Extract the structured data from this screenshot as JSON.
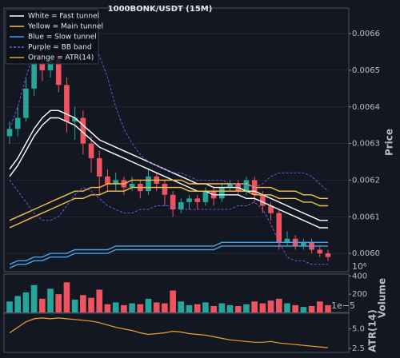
{
  "chart_data": [
    {
      "type": "candlestick",
      "title": "1000BONK/USDT (15M)",
      "ylabel": "Price",
      "up_color": "#26a69a",
      "down_color": "#ef5360",
      "grid": true,
      "legend": "upper left",
      "ylim": [
        0.00595,
        0.00667
      ],
      "yticks": [
        {
          "value": 0.006,
          "label": "0.0060"
        },
        0.0061,
        0.0062,
        0.0063,
        0.0064,
        0.0065,
        0.0066
      ],
      "open": [
        0.00632,
        0.00634,
        0.00637,
        0.00645,
        0.00652,
        0.0065,
        0.00653,
        0.00646,
        0.00636,
        0.00637,
        0.0063,
        0.00626,
        0.00621,
        0.00619,
        0.0062,
        0.00618,
        0.00619,
        0.00617,
        0.00621,
        0.00619,
        0.00616,
        0.00612,
        0.00614,
        0.00615,
        0.00614,
        0.00617,
        0.00615,
        0.00618,
        0.00619,
        0.00617,
        0.0062,
        0.00616,
        0.00613,
        0.00611,
        0.00603,
        0.00604,
        0.00602,
        0.00603,
        0.00601,
        0.006
      ],
      "high": [
        0.00636,
        0.0064,
        0.00648,
        0.0066,
        0.00655,
        0.00658,
        0.00655,
        0.00648,
        0.0064,
        0.00639,
        0.00632,
        0.00628,
        0.00623,
        0.00622,
        0.00621,
        0.00621,
        0.0062,
        0.00623,
        0.00622,
        0.0062,
        0.00617,
        0.00615,
        0.00616,
        0.00616,
        0.00618,
        0.00618,
        0.00619,
        0.0062,
        0.0062,
        0.00621,
        0.00621,
        0.00617,
        0.00614,
        0.00612,
        0.00606,
        0.00605,
        0.00604,
        0.00604,
        0.00602,
        0.00601
      ],
      "low": [
        0.0063,
        0.00632,
        0.00636,
        0.00643,
        0.00647,
        0.00648,
        0.00644,
        0.00633,
        0.00631,
        0.00627,
        0.00622,
        0.00616,
        0.00617,
        0.00617,
        0.00616,
        0.00617,
        0.00615,
        0.00616,
        0.00617,
        0.00613,
        0.0061,
        0.00611,
        0.00612,
        0.00612,
        0.00613,
        0.00613,
        0.00614,
        0.00617,
        0.00616,
        0.00616,
        0.00614,
        0.00611,
        0.00609,
        0.00601,
        0.00602,
        0.00601,
        0.00601,
        0.006,
        0.00599,
        0.00598
      ],
      "close": [
        0.00634,
        0.00637,
        0.00645,
        0.00652,
        0.0065,
        0.00653,
        0.00646,
        0.00636,
        0.00637,
        0.0063,
        0.00626,
        0.00621,
        0.00619,
        0.0062,
        0.00618,
        0.00619,
        0.00617,
        0.00621,
        0.00619,
        0.00616,
        0.00612,
        0.00614,
        0.00615,
        0.00614,
        0.00617,
        0.00615,
        0.00618,
        0.00619,
        0.00617,
        0.0062,
        0.00616,
        0.00613,
        0.00611,
        0.00603,
        0.00604,
        0.00602,
        0.00603,
        0.00601,
        0.006,
        0.00599
      ],
      "series": [
        {
          "name": "White = Fast tunnel",
          "color": "#ffffff",
          "dash": false,
          "upper": [
            0.00623,
            0.00626,
            0.0063,
            0.00634,
            0.00637,
            0.00639,
            0.00639,
            0.00638,
            0.00637,
            0.00635,
            0.00633,
            0.00631,
            0.0063,
            0.00629,
            0.00628,
            0.00627,
            0.00626,
            0.00625,
            0.00624,
            0.00623,
            0.00622,
            0.00621,
            0.0062,
            0.00619,
            0.00619,
            0.00618,
            0.00618,
            0.00618,
            0.00618,
            0.00617,
            0.00617,
            0.00616,
            0.00615,
            0.00614,
            0.00613,
            0.00612,
            0.00611,
            0.0061,
            0.00609,
            0.00609
          ],
          "lower": [
            0.00621,
            0.00624,
            0.00628,
            0.00632,
            0.00635,
            0.00637,
            0.00637,
            0.00636,
            0.00635,
            0.00633,
            0.00631,
            0.00629,
            0.00628,
            0.00627,
            0.00626,
            0.00625,
            0.00624,
            0.00623,
            0.00622,
            0.00621,
            0.0062,
            0.00619,
            0.00618,
            0.00617,
            0.00617,
            0.00616,
            0.00616,
            0.00616,
            0.00616,
            0.00615,
            0.00615,
            0.00614,
            0.00613,
            0.00612,
            0.00611,
            0.0061,
            0.00609,
            0.00608,
            0.00607,
            0.00607
          ]
        },
        {
          "name": "Yellow = Main tunnel",
          "color": "#f5c342",
          "dash": false,
          "upper": [
            0.00609,
            0.0061,
            0.00611,
            0.00612,
            0.00613,
            0.00614,
            0.00615,
            0.00616,
            0.00617,
            0.00617,
            0.00618,
            0.00618,
            0.00619,
            0.00619,
            0.00619,
            0.0062,
            0.0062,
            0.0062,
            0.0062,
            0.0062,
            0.0062,
            0.0062,
            0.00619,
            0.00619,
            0.00619,
            0.00619,
            0.00619,
            0.00619,
            0.00619,
            0.00619,
            0.00618,
            0.00618,
            0.00618,
            0.00617,
            0.00617,
            0.00617,
            0.00616,
            0.00616,
            0.00615,
            0.00615
          ],
          "lower": [
            0.00607,
            0.00608,
            0.00609,
            0.0061,
            0.00611,
            0.00612,
            0.00613,
            0.00614,
            0.00615,
            0.00615,
            0.00616,
            0.00616,
            0.00617,
            0.00617,
            0.00617,
            0.00618,
            0.00618,
            0.00618,
            0.00618,
            0.00618,
            0.00618,
            0.00618,
            0.00617,
            0.00617,
            0.00617,
            0.00617,
            0.00617,
            0.00617,
            0.00617,
            0.00617,
            0.00616,
            0.00616,
            0.00616,
            0.00615,
            0.00615,
            0.00615,
            0.00614,
            0.00614,
            0.00613,
            0.00613
          ]
        },
        {
          "name": "Blue = Slow tunnel",
          "color": "#4aa3e8",
          "dash": false,
          "upper": [
            0.00597,
            0.00598,
            0.00598,
            0.00599,
            0.00599,
            0.006,
            0.006,
            0.006,
            0.00601,
            0.00601,
            0.00601,
            0.00601,
            0.00601,
            0.00602,
            0.00602,
            0.00602,
            0.00602,
            0.00602,
            0.00602,
            0.00602,
            0.00602,
            0.00602,
            0.00602,
            0.00602,
            0.00602,
            0.00602,
            0.00603,
            0.00603,
            0.00603,
            0.00603,
            0.00603,
            0.00603,
            0.00603,
            0.00603,
            0.00603,
            0.00603,
            0.00603,
            0.00603,
            0.00603,
            0.00603
          ],
          "lower": [
            0.00596,
            0.00597,
            0.00597,
            0.00598,
            0.00598,
            0.00599,
            0.00599,
            0.00599,
            0.006,
            0.006,
            0.006,
            0.006,
            0.006,
            0.00601,
            0.00601,
            0.00601,
            0.00601,
            0.00601,
            0.00601,
            0.00601,
            0.00601,
            0.00601,
            0.00601,
            0.00601,
            0.00601,
            0.00601,
            0.00602,
            0.00602,
            0.00602,
            0.00602,
            0.00602,
            0.00602,
            0.00602,
            0.00602,
            0.00602,
            0.00602,
            0.00602,
            0.00602,
            0.00602,
            0.00602
          ]
        },
        {
          "name": "Purple = BB band",
          "color": "#7b5ce6",
          "dash": true,
          "upper": [
            0.00634,
            0.0064,
            0.00648,
            0.00655,
            0.0066,
            0.00663,
            0.00664,
            0.00664,
            0.00663,
            0.0066,
            0.00657,
            0.00654,
            0.00648,
            0.0064,
            0.00634,
            0.0063,
            0.00627,
            0.00625,
            0.00624,
            0.00623,
            0.00622,
            0.00622,
            0.00621,
            0.0062,
            0.0062,
            0.0062,
            0.0062,
            0.00619,
            0.00619,
            0.00619,
            0.00618,
            0.00619,
            0.00621,
            0.00622,
            0.00622,
            0.00622,
            0.00622,
            0.00621,
            0.00619,
            0.00617
          ],
          "lower": [
            0.0062,
            0.00617,
            0.00614,
            0.00611,
            0.00609,
            0.00609,
            0.0061,
            0.00613,
            0.00616,
            0.00618,
            0.00617,
            0.00615,
            0.00613,
            0.00612,
            0.00611,
            0.00611,
            0.00612,
            0.00612,
            0.00613,
            0.00613,
            0.00613,
            0.00612,
            0.00612,
            0.00612,
            0.00612,
            0.00612,
            0.00612,
            0.00612,
            0.00613,
            0.00613,
            0.00614,
            0.00612,
            0.00608,
            0.00603,
            0.00599,
            0.00598,
            0.00598,
            0.00597,
            0.00597,
            0.00597
          ]
        }
      ]
    },
    {
      "type": "volume",
      "ylabel": "Volume",
      "offset": "10⁶",
      "ylim": [
        0,
        420
      ],
      "yticks": [
        200,
        400
      ],
      "values": [
        120,
        180,
        220,
        300,
        150,
        260,
        200,
        330,
        140,
        190,
        160,
        250,
        90,
        110,
        80,
        100,
        90,
        150,
        110,
        100,
        240,
        120,
        80,
        90,
        110,
        70,
        100,
        80,
        70,
        90,
        120,
        100,
        130,
        150,
        100,
        80,
        60,
        70,
        120,
        80
      ]
    },
    {
      "type": "line",
      "ylabel": "ATR(14)",
      "offset": "1e−5",
      "ylim": [
        2.0,
        7.0
      ],
      "yticks": [
        2.5,
        {
          "value": 5,
          "label": "5.0"
        }
      ],
      "series": [
        {
          "name": "Orange = ATR(14)",
          "color": "#f0a030",
          "values": [
            4.5,
            5.2,
            5.9,
            6.3,
            6.4,
            6.3,
            6.4,
            6.3,
            6.2,
            6.1,
            6.0,
            5.8,
            5.5,
            5.2,
            5.0,
            4.8,
            4.5,
            4.3,
            4.4,
            4.5,
            4.7,
            4.6,
            4.4,
            4.3,
            4.2,
            4.0,
            3.8,
            3.6,
            3.5,
            3.4,
            3.3,
            3.3,
            3.4,
            3.2,
            3.1,
            3.0,
            2.9,
            2.8,
            2.7,
            2.6
          ]
        }
      ]
    }
  ]
}
